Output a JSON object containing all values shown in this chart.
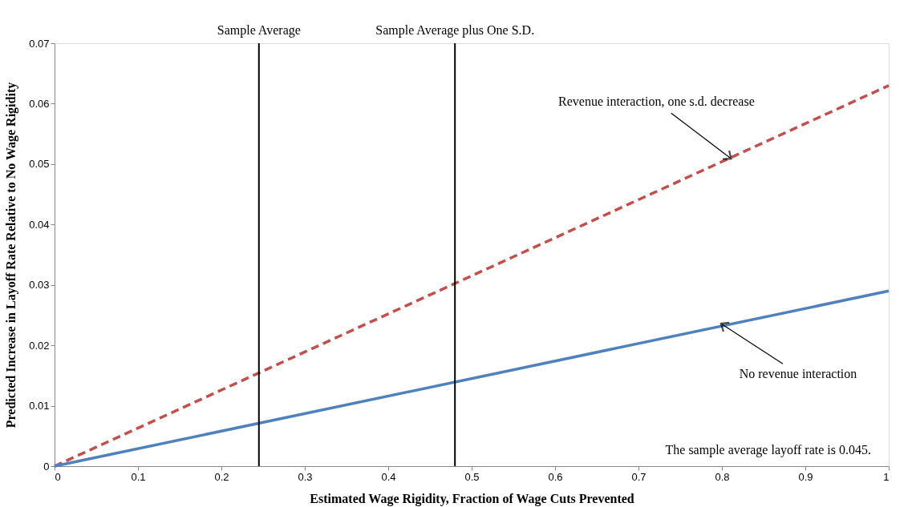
{
  "chart_data": {
    "type": "line",
    "xlabel": "Estimated Wage Rigidity, Fraction of Wage Cuts Prevented",
    "ylabel": "Predicted Increase in Layoff Rate Relative to No Wage Rigidity",
    "x": [
      0,
      1
    ],
    "series": [
      {
        "color": "#c0504d",
        "values": [
          0,
          0.063
        ],
        "line_style": "dashed"
      },
      {
        "color": "#4f81bd",
        "values": [
          0,
          0.029
        ],
        "line_style": "solid"
      }
    ],
    "xlim": [
      0,
      1
    ],
    "xticks": [
      0,
      0.1,
      0.2,
      0.3,
      0.4,
      0.5,
      0.6,
      0.7,
      0.8,
      0.9,
      1
    ],
    "ylim": [
      0,
      0.07
    ],
    "yticks": [
      0,
      0.01,
      0.02,
      0.03,
      0.04,
      0.05,
      0.06,
      0.07
    ],
    "ref_lines": [
      {
        "axis": "x",
        "value": 0.245,
        "label": "Sample Average",
        "color": "#000000"
      },
      {
        "axis": "x",
        "value": 0.48,
        "label": "Sample Average plus One S.D.",
        "color": "#000000"
      }
    ],
    "annotations": [
      {
        "text": "Revenue interaction, one s.d. decrease",
        "x": 0.81,
        "y": 0.051
      },
      {
        "text": "No revenue interaction",
        "x": 0.8,
        "y": 0.0235
      },
      "The sample average layoff rate is 0.045."
    ],
    "grid": false,
    "marker": "none"
  }
}
